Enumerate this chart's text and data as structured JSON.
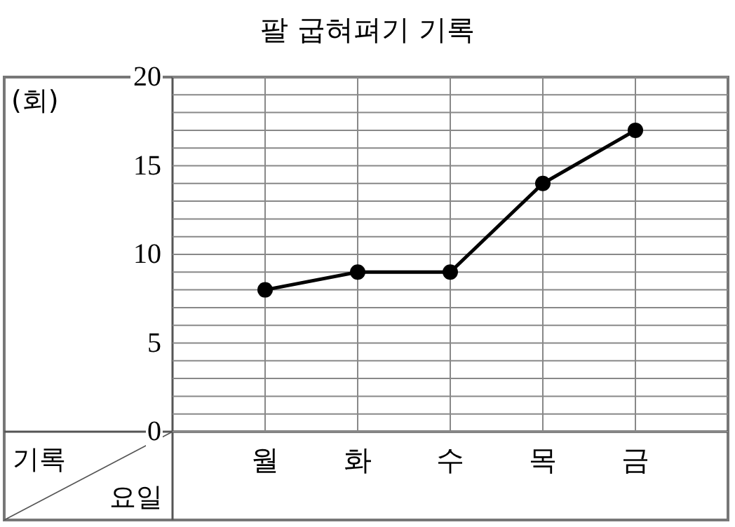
{
  "chart_data": {
    "type": "line",
    "title": "팔 굽혀펴기 기록",
    "xlabel": "요일",
    "ylabel": "기록",
    "annotations": [
      "(회)"
    ],
    "categories": [
      "월",
      "화",
      "수",
      "목",
      "금"
    ],
    "series": [
      {
        "color": "#000000",
        "values": [
          8,
          9,
          9,
          14,
          17
        ]
      }
    ],
    "ylim": [
      0,
      20
    ],
    "yticks": [
      0,
      {
        "value": 1,
        "label": null
      },
      {
        "value": 2,
        "label": null
      },
      {
        "value": 3,
        "label": null
      },
      {
        "value": 4,
        "label": null
      },
      5,
      {
        "value": 6,
        "label": null
      },
      {
        "value": 7,
        "label": null
      },
      {
        "value": 8,
        "label": null
      },
      {
        "value": 9,
        "label": null
      },
      10,
      {
        "value": 11,
        "label": null
      },
      {
        "value": 12,
        "label": null
      },
      {
        "value": 13,
        "label": null
      },
      {
        "value": 14,
        "label": null
      },
      15,
      {
        "value": 16,
        "label": null
      },
      {
        "value": 17,
        "label": null
      },
      {
        "value": 18,
        "label": null
      },
      {
        "value": 19,
        "label": null
      },
      20
    ],
    "grid": true,
    "marker": "circle",
    "line_style": "solid"
  }
}
